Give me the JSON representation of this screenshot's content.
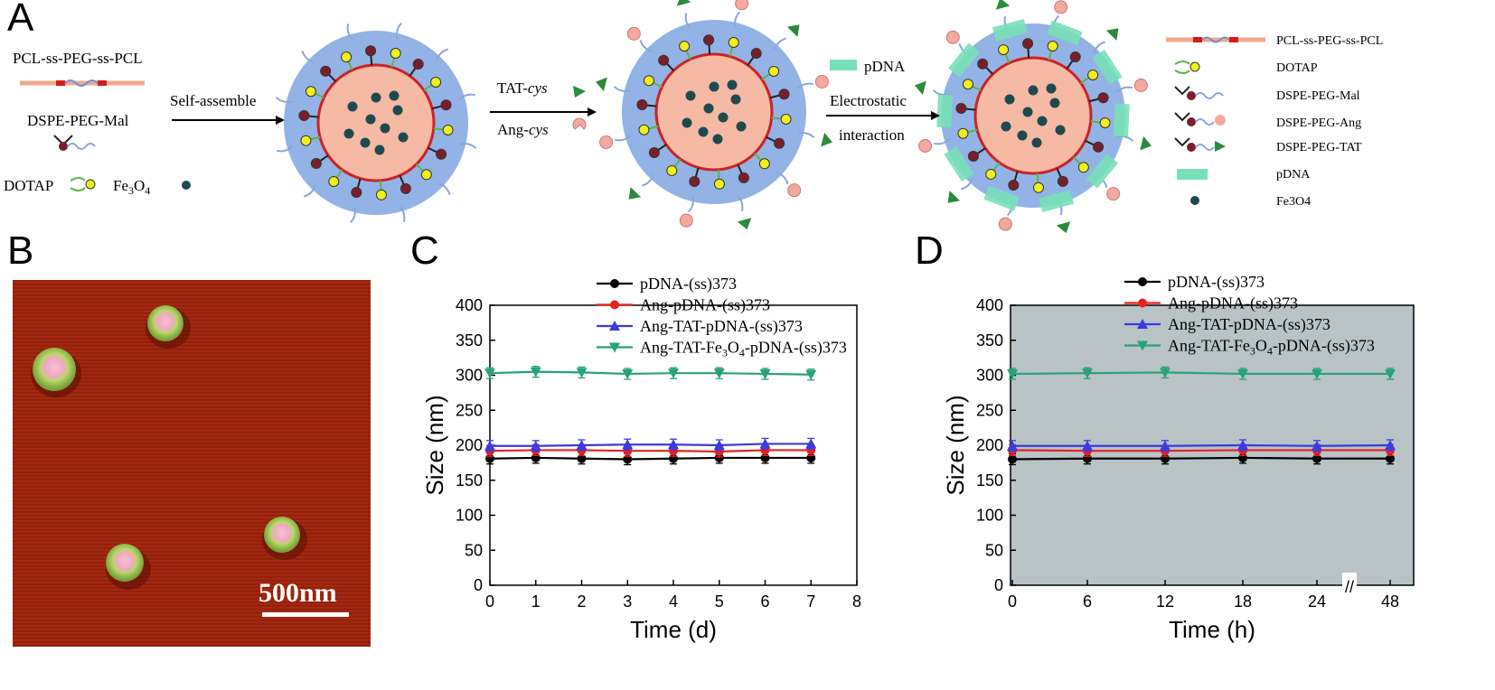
{
  "panels": {
    "A": "A",
    "B": "B",
    "C": "C",
    "D": "D"
  },
  "scheme": {
    "left_labels": {
      "polymer": "PCL-ss-PEG-ss-PCL",
      "lipid": "DSPE-PEG-Mal",
      "dotap": "DOTAP",
      "fe_base": "Fe",
      "fe_sub1": "3",
      "fe_mid": "O",
      "fe_sub2": "4"
    },
    "step1": "Self-assemble",
    "step2_a": "TAT-",
    "step2_a_it": "cys",
    "step2_b": "Ang-",
    "step2_b_it": "cys",
    "step3_a": "Electrostatic",
    "step3_b": "interaction",
    "step3_pdna": "pDNA",
    "legend": [
      {
        "label": "PCL-ss-PEG-ss-PCL"
      },
      {
        "label": "DOTAP"
      },
      {
        "label": "DSPE-PEG-Mal"
      },
      {
        "label": "DSPE-PEG-Ang"
      },
      {
        "label": "DSPE-PEG-TAT"
      },
      {
        "label": "pDNA"
      },
      {
        "label": "Fe3O4"
      }
    ]
  },
  "micrograph": {
    "scale_bar": "500nm"
  },
  "colors": {
    "black": "#000000",
    "red": "#e8201f",
    "blue": "#3b3be0",
    "green": "#27a377",
    "plot_bg_D": "#b9c3c5",
    "shell": "#93b3e6",
    "core": "#f6b9a4",
    "membrane": "#cc2222",
    "dotap_head": "#f0ee1c",
    "lipid_head": "#7a1f2a",
    "peg": "#8aa7d8",
    "pdna": "#78e0b8",
    "tat": "#2c8a3c",
    "ang": "#f3a9a0"
  },
  "chart_data": [
    {
      "type": "line",
      "panel": "C",
      "xlabel": "Time (d)",
      "ylabel": "Size (nm)",
      "xlim": [
        0,
        8
      ],
      "ylim": [
        0,
        400
      ],
      "xticks": [
        "0",
        "1",
        "2",
        "3",
        "4",
        "5",
        "6",
        "7",
        "8"
      ],
      "yticks": [
        "0",
        "50",
        "100",
        "150",
        "200",
        "250",
        "300",
        "350",
        "400"
      ],
      "x": [
        0,
        1,
        2,
        3,
        4,
        5,
        6,
        7
      ],
      "legend_position": "top",
      "series": [
        {
          "name": "pDNA-(ss)373",
          "color": "#000000",
          "marker": "circle",
          "values": [
            181,
            182,
            181,
            180,
            181,
            182,
            182,
            182
          ]
        },
        {
          "name": "Ang-pDNA-(ss)373",
          "color": "#e8201f",
          "marker": "circle",
          "values": [
            192,
            193,
            193,
            192,
            192,
            191,
            193,
            193
          ]
        },
        {
          "name": "Ang-TAT-pDNA-(ss)373",
          "color": "#3b3be0",
          "marker": "triangle-up",
          "values": [
            199,
            199,
            200,
            201,
            201,
            200,
            202,
            202
          ]
        },
        {
          "name": "Ang-TAT-Fe3O4-pDNA-(ss)373",
          "color": "#27a377",
          "marker": "triangle-down",
          "values": [
            303,
            305,
            304,
            302,
            303,
            303,
            302,
            301
          ]
        }
      ]
    },
    {
      "type": "line",
      "panel": "D",
      "xlabel": "Time (h)",
      "ylabel": "Size (nm)",
      "ylim": [
        0,
        400
      ],
      "xticks": [
        "0",
        "6",
        "12",
        "18",
        "24",
        "48"
      ],
      "yticks": [
        "0",
        "50",
        "100",
        "150",
        "200",
        "250",
        "300",
        "350",
        "400"
      ],
      "x": [
        "0",
        "6",
        "12",
        "18",
        "24",
        "48"
      ],
      "axis_break": "//",
      "legend_position": "top",
      "series": [
        {
          "name": "pDNA-(ss)373",
          "color": "#000000",
          "marker": "circle",
          "values": [
            180,
            181,
            181,
            182,
            181,
            181
          ]
        },
        {
          "name": "Ang-pDNA-(ss)373",
          "color": "#e8201f",
          "marker": "circle",
          "values": [
            193,
            192,
            192,
            193,
            193,
            193
          ]
        },
        {
          "name": "Ang-TAT-pDNA-(ss)373",
          "color": "#3b3be0",
          "marker": "triangle-up",
          "values": [
            199,
            199,
            199,
            200,
            199,
            200
          ]
        },
        {
          "name": "Ang-TAT-Fe3O4-pDNA-(ss)373",
          "color": "#27a377",
          "marker": "triangle-down",
          "values": [
            302,
            303,
            304,
            302,
            302,
            302
          ]
        }
      ]
    }
  ]
}
